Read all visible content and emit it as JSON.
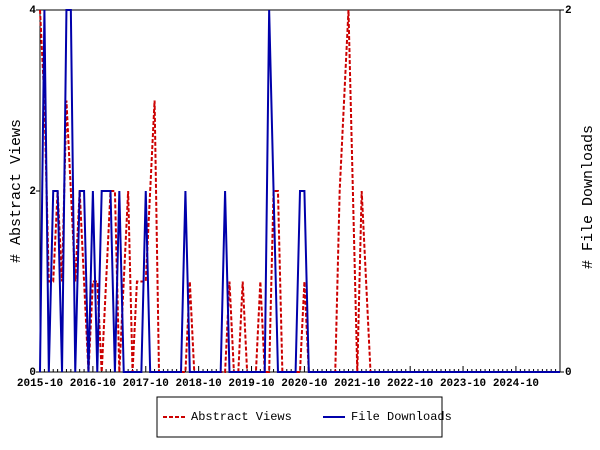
{
  "chart_data": {
    "type": "line",
    "x": [
      "2015-10",
      "2015-11",
      "2015-12",
      "2016-01",
      "2016-02",
      "2016-03",
      "2016-04",
      "2016-05",
      "2016-06",
      "2016-07",
      "2016-08",
      "2016-09",
      "2016-10",
      "2016-11",
      "2016-12",
      "2017-01",
      "2017-02",
      "2017-03",
      "2017-04",
      "2017-05",
      "2017-06",
      "2017-07",
      "2017-08",
      "2017-09",
      "2017-10",
      "2017-11",
      "2017-12",
      "2018-01",
      "2018-02",
      "2018-03",
      "2018-04",
      "2018-05",
      "2018-06",
      "2018-07",
      "2018-08",
      "2018-09",
      "2018-10",
      "2018-11",
      "2018-12",
      "2019-01",
      "2019-02",
      "2019-03",
      "2019-04",
      "2019-05",
      "2019-06",
      "2019-07",
      "2019-08",
      "2019-09",
      "2019-10",
      "2019-11",
      "2019-12",
      "2020-01",
      "2020-02",
      "2020-03",
      "2020-04",
      "2020-05",
      "2020-06",
      "2020-07",
      "2020-08",
      "2020-09",
      "2020-10",
      "2020-11",
      "2020-12",
      "2021-01",
      "2021-02",
      "2021-03",
      "2021-04",
      "2021-05",
      "2021-06",
      "2021-07",
      "2021-08",
      "2021-09",
      "2021-10",
      "2021-11",
      "2021-12",
      "2022-01",
      "2022-02",
      "2022-03",
      "2022-04",
      "2022-05",
      "2022-06",
      "2022-07",
      "2022-08",
      "2022-09",
      "2022-10",
      "2022-11",
      "2022-12",
      "2023-01",
      "2023-02",
      "2023-03",
      "2023-04",
      "2023-05",
      "2023-06",
      "2023-07",
      "2023-08",
      "2023-09",
      "2023-10",
      "2023-11",
      "2023-12",
      "2024-01",
      "2024-02",
      "2024-03",
      "2024-04",
      "2024-05",
      "2024-06",
      "2024-07",
      "2024-08",
      "2024-09",
      "2024-10",
      "2024-11",
      "2024-12",
      "2025-01",
      "2025-02",
      "2025-03",
      "2025-04",
      "2025-05",
      "2025-06",
      "2025-07",
      "2025-08"
    ],
    "series": [
      {
        "name": "Abstract Views",
        "color": "#cc0000",
        "values": [
          4,
          3,
          1,
          1,
          2,
          1,
          3,
          2,
          1,
          2,
          1,
          0,
          1,
          1,
          0,
          1,
          2,
          2,
          0,
          1,
          2,
          0,
          1,
          1,
          1,
          2,
          3,
          0,
          0,
          0,
          0,
          0,
          0,
          0,
          1,
          0,
          0,
          0,
          0,
          0,
          0,
          0,
          0,
          1,
          0,
          0,
          1,
          0,
          0,
          0,
          1,
          0,
          0,
          2,
          2,
          0,
          0,
          0,
          0,
          0,
          1,
          0,
          0,
          0,
          0,
          0,
          0,
          0,
          2,
          3,
          4,
          2,
          0,
          2,
          1,
          0,
          0,
          0,
          0,
          0,
          0,
          0,
          0,
          0,
          0,
          0,
          0,
          0,
          0,
          0,
          0,
          0,
          0,
          0,
          0,
          0,
          0,
          0,
          0,
          0,
          0,
          0,
          0,
          0,
          0,
          0,
          0,
          0,
          0,
          0,
          0,
          0,
          0,
          0,
          0,
          0,
          0,
          0,
          0
        ]
      },
      {
        "name": "File Downloads",
        "color": "#0000aa",
        "axis": "y2",
        "values": [
          0,
          2,
          0,
          1,
          1,
          0,
          2,
          2,
          0,
          1,
          1,
          0,
          1,
          0,
          1,
          1,
          1,
          0,
          1,
          0,
          0,
          0,
          0,
          0,
          1,
          0,
          0,
          0,
          0,
          0,
          0,
          0,
          0,
          1,
          0,
          0,
          0,
          0,
          0,
          0,
          0,
          0,
          1,
          0,
          0,
          0,
          0,
          0,
          0,
          0,
          0,
          0,
          2,
          1,
          0,
          0,
          0,
          0,
          0,
          1,
          1,
          0,
          0,
          0,
          0,
          0,
          0,
          0,
          0,
          0,
          0,
          0,
          0,
          0,
          0,
          0,
          0,
          0,
          0,
          0,
          0,
          0,
          0,
          0,
          0,
          0,
          0,
          0,
          0,
          0,
          0,
          0,
          0,
          0,
          0,
          0,
          0,
          0,
          0,
          0,
          0,
          0,
          0,
          0,
          0,
          0,
          0,
          0,
          0,
          0,
          0,
          0,
          0,
          0,
          0,
          0,
          0,
          0,
          0
        ]
      }
    ],
    "ylabel": "# Abstract Views",
    "y2label": "# File Downloads",
    "ylim": [
      0,
      4
    ],
    "yticks": [
      0,
      2,
      4
    ],
    "y2lim": [
      0,
      2
    ],
    "y2ticks": [
      0,
      2
    ]
  }
}
